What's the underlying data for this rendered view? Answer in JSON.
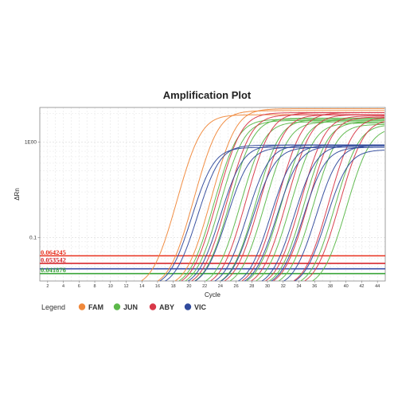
{
  "chart_data": {
    "type": "line",
    "title": "Amplification Plot",
    "xlabel": "Cycle",
    "ylabel": "ΔRn",
    "xlim": [
      1,
      45
    ],
    "ylim": [
      0.035,
      2.3
    ],
    "y_scale": "log",
    "grid": true,
    "x_ticks": [
      2,
      4,
      6,
      8,
      10,
      12,
      14,
      16,
      18,
      20,
      22,
      24,
      26,
      28,
      30,
      32,
      34,
      36,
      38,
      40,
      42,
      44
    ],
    "y_ticks": [
      {
        "value": 1,
        "label": "1E00"
      },
      {
        "value": 0.1,
        "label": "0.1"
      }
    ],
    "thresholds": [
      {
        "value": 0.064245,
        "label": "0.064245",
        "color": "#e8301e"
      },
      {
        "value": 0.053542,
        "label": "0.053542",
        "color": "#d6282e"
      },
      {
        "value": 0.047,
        "label": "",
        "color": "#3a4fa8"
      },
      {
        "value": 0.041876,
        "label": "0.041876",
        "color": "#3aa53a"
      }
    ],
    "legend": {
      "title": "Legend",
      "position": "bottom-left",
      "entries": [
        {
          "name": "FAM",
          "color": "#f0883a"
        },
        {
          "name": "JUN",
          "color": "#5cb84a"
        },
        {
          "name": "ABY",
          "color": "#d83848"
        },
        {
          "name": "VIC",
          "color": "#304a9c"
        }
      ]
    },
    "series": [
      {
        "name": "FAM",
        "color": "#f0883a",
        "curves": [
          {
            "ct": 16.2,
            "plateau": 1.9
          },
          {
            "ct": 18.3,
            "plateau": 2.1
          },
          {
            "ct": 20.5,
            "plateau": 2.2
          }
        ]
      },
      {
        "name": "JUN",
        "color": "#5cb84a",
        "curves": [
          {
            "ct": 21.0,
            "plateau": 1.7
          },
          {
            "ct": 21.8,
            "plateau": 1.65
          },
          {
            "ct": 23.0,
            "plateau": 1.75
          },
          {
            "ct": 24.4,
            "plateau": 1.6
          },
          {
            "ct": 26.3,
            "plateau": 1.7
          },
          {
            "ct": 27.5,
            "plateau": 1.6
          },
          {
            "ct": 29.6,
            "plateau": 1.7
          },
          {
            "ct": 30.8,
            "plateau": 1.55
          },
          {
            "ct": 32.5,
            "plateau": 1.6
          },
          {
            "ct": 33.7,
            "plateau": 1.5
          },
          {
            "ct": 36.5,
            "plateau": 1.5
          },
          {
            "ct": 38.0,
            "plateau": 1.4
          }
        ]
      },
      {
        "name": "ABY",
        "color": "#d83848",
        "curves": [
          {
            "ct": 21.3,
            "plateau": 2.0
          },
          {
            "ct": 22.6,
            "plateau": 1.9
          },
          {
            "ct": 25.0,
            "plateau": 2.0
          },
          {
            "ct": 26.8,
            "plateau": 1.9
          },
          {
            "ct": 29.0,
            "plateau": 2.0
          },
          {
            "ct": 30.2,
            "plateau": 1.9
          },
          {
            "ct": 32.0,
            "plateau": 1.85
          },
          {
            "ct": 33.0,
            "plateau": 1.8
          },
          {
            "ct": 35.6,
            "plateau": 1.8
          },
          {
            "ct": 37.0,
            "plateau": 1.7
          }
        ]
      },
      {
        "name": "VIC",
        "color": "#304a9c",
        "curves": [
          {
            "ct": 18.6,
            "plateau": 0.85
          },
          {
            "ct": 19.3,
            "plateau": 0.9
          },
          {
            "ct": 22.2,
            "plateau": 0.9
          },
          {
            "ct": 23.1,
            "plateau": 0.85
          },
          {
            "ct": 25.6,
            "plateau": 0.9
          },
          {
            "ct": 26.4,
            "plateau": 0.85
          },
          {
            "ct": 28.6,
            "plateau": 0.9
          },
          {
            "ct": 29.4,
            "plateau": 0.88
          },
          {
            "ct": 31.6,
            "plateau": 0.9
          },
          {
            "ct": 32.8,
            "plateau": 0.85
          },
          {
            "ct": 34.4,
            "plateau": 0.9
          },
          {
            "ct": 35.8,
            "plateau": 0.8
          }
        ]
      }
    ]
  }
}
